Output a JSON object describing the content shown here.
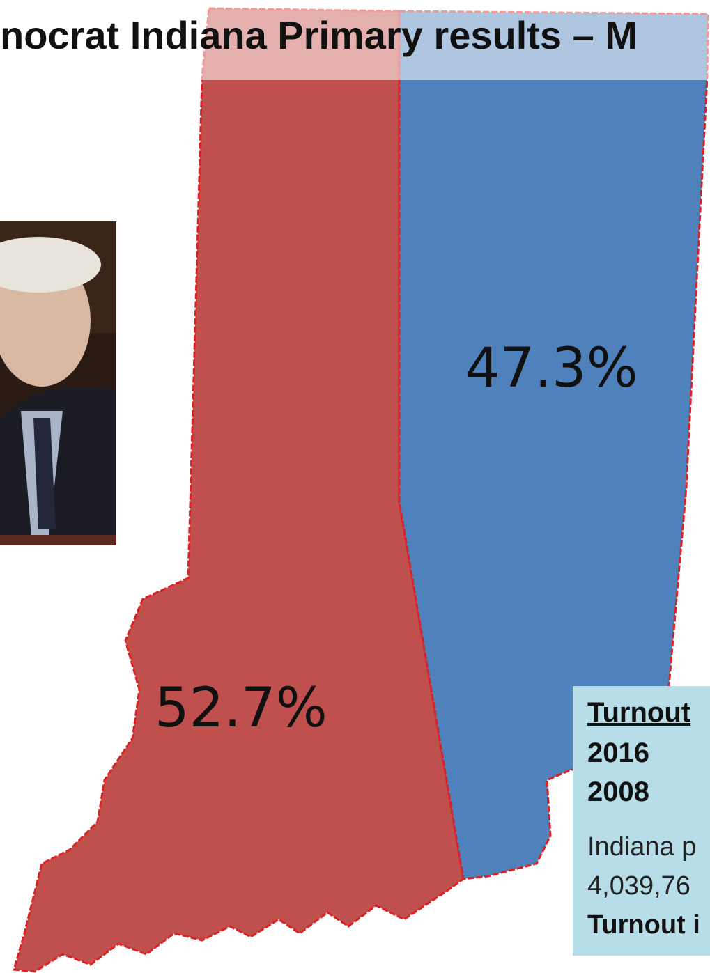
{
  "header": {
    "title": "nocrat Indiana Primary results – M"
  },
  "map": {
    "regions": [
      {
        "label": "52.7%"
      },
      {
        "label": "47.3%"
      }
    ]
  },
  "turnout_box": {
    "heading": "Turnout",
    "rows": [
      "2016",
      "2008"
    ],
    "lines": [
      "Indiana p",
      "4,039,76",
      "Turnout i"
    ]
  }
}
